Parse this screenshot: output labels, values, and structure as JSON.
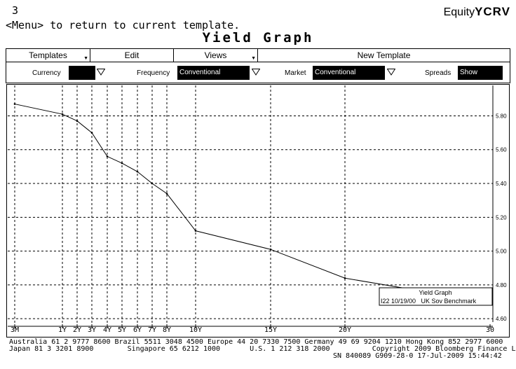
{
  "header": {
    "page_number": "3",
    "hint": "<Menu> to return to current template.",
    "brand_prefix": "Equity",
    "brand_code": "YCRV",
    "title": "Yield Graph"
  },
  "menubar": {
    "items": [
      {
        "label": "Templates"
      },
      {
        "label": "Edit"
      },
      {
        "label": "Views"
      },
      {
        "label": "New Template"
      }
    ]
  },
  "filters": {
    "currency": {
      "label": "Currency",
      "value": ""
    },
    "frequency": {
      "label": "Frequency",
      "value": "Conventional"
    },
    "market": {
      "label": "Market",
      "value": "Conventional"
    },
    "spreads": {
      "label": "Spreads",
      "value": "Show"
    }
  },
  "chart_data": {
    "type": "line",
    "x_ticks": [
      "3M",
      "1Y",
      "2Y",
      "3Y",
      "4Y",
      "5Y",
      "6Y",
      "7Y",
      "8Y",
      "10Y",
      "15Y",
      "20Y",
      "30"
    ],
    "y_ticks": [
      "5.80",
      "5.60",
      "5.40",
      "5.20",
      "5.00",
      "4.80",
      "4.60"
    ],
    "ylim": [
      4.58,
      5.98
    ],
    "grid": true,
    "series": [
      {
        "color": "#000000",
        "points": [
          {
            "x": "3M",
            "y": 5.87
          },
          {
            "x": "1Y",
            "y": 5.81
          },
          {
            "x": "2Y",
            "y": 5.77
          },
          {
            "x": "3Y",
            "y": 5.7
          },
          {
            "x": "4Y",
            "y": 5.56
          },
          {
            "x": "5Y",
            "y": 5.52
          },
          {
            "x": "6Y",
            "y": 5.47
          },
          {
            "x": "7Y",
            "y": 5.4
          },
          {
            "x": "8Y",
            "y": 5.34
          },
          {
            "x": "10Y",
            "y": 5.12
          },
          {
            "x": "15Y",
            "y": 5.01
          },
          {
            "x": "20Y",
            "y": 4.84
          },
          {
            "x": "27Y",
            "y": 4.76
          }
        ]
      }
    ],
    "legend": {
      "position": "bottom-right",
      "title": "Yield Graph",
      "entry": "I22 10/19/00   UK Sov Benchmark"
    }
  },
  "footer": {
    "line1": "Australia 61 2 9777 8600 Brazil 5511 3048 4500 Europe 44 20 7330 7500 Germany 49 69 9204 1210 Hong Kong 852 2977 6000",
    "line2": "Japan 81 3 3201 8900        Singapore 65 6212 1000       U.S. 1 212 318 2000          Copyright 2009 Bloomberg Finance L.P.",
    "line3": "SN 840089 G909-28-0 17-Jul-2009 15:44:42"
  }
}
